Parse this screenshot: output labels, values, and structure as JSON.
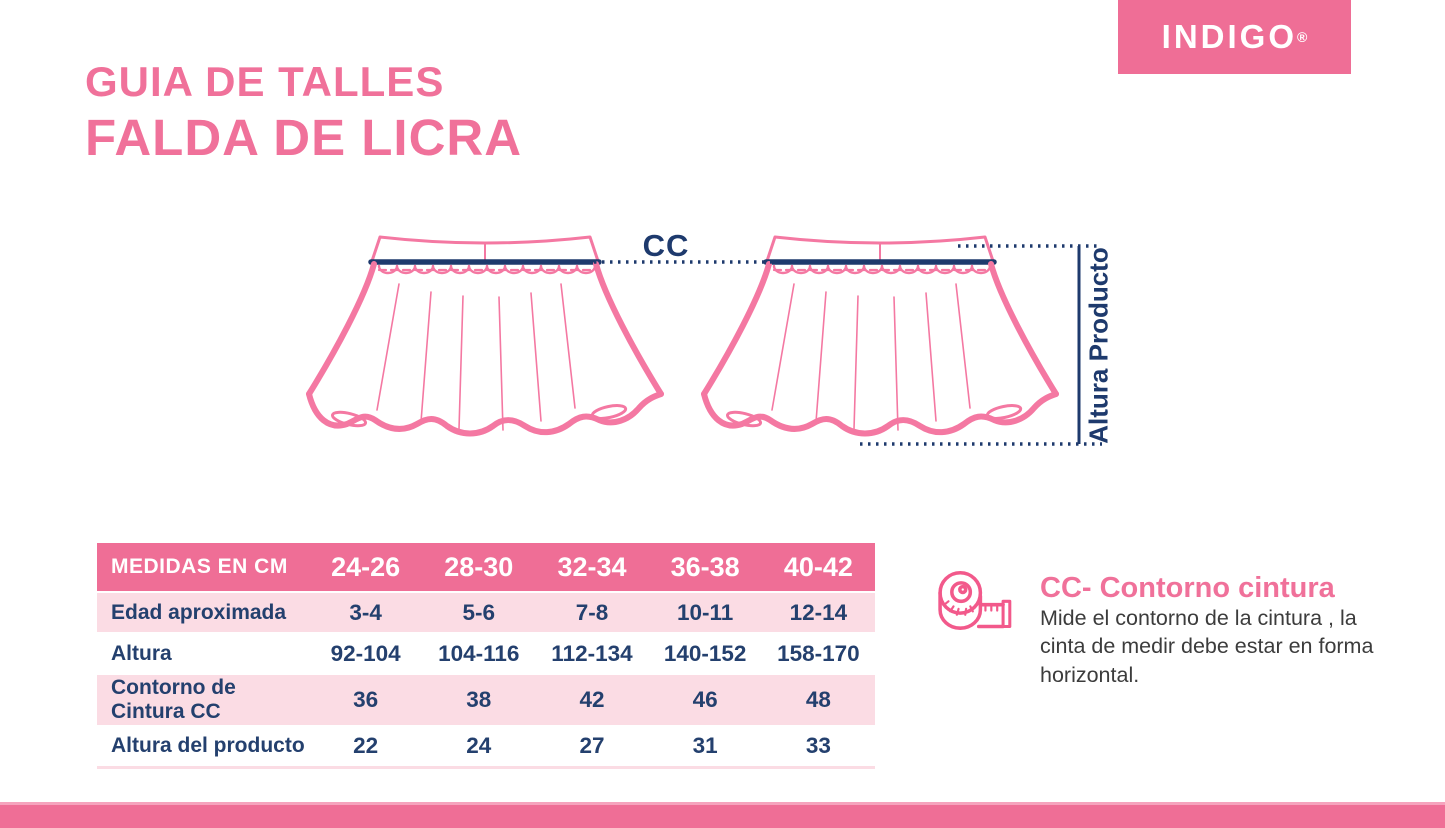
{
  "brand": {
    "logo_text": "INDIGO",
    "registered_mark": "®",
    "bg_color": "#ef6e96",
    "text_color": "#ffffff"
  },
  "header": {
    "subtitle": "GUIA DE TALLES",
    "title": "FALDA DE LICRA",
    "color": "#f0719a"
  },
  "diagram": {
    "cc_label": "CC",
    "altura_label": "Altura Producto",
    "skirt_outline_color": "#f478a2",
    "waistband_line_color": "#1e3a6d",
    "measure_line_color": "#1e3a6d"
  },
  "table": {
    "header": {
      "label": "MEDIDAS EN CM",
      "sizes": [
        "24-26",
        "28-30",
        "32-34",
        "36-38",
        "40-42"
      ]
    },
    "rows": [
      {
        "label": "Edad aproximada",
        "values": [
          "3-4",
          "5-6",
          "7-8",
          "10-11",
          "12-14"
        ]
      },
      {
        "label": "Altura",
        "values": [
          "92-104",
          "104-116",
          "112-134",
          "140-152",
          "158-170"
        ]
      },
      {
        "label": "Contorno de Cintura CC",
        "values": [
          "36",
          "38",
          "42",
          "46",
          "48"
        ]
      },
      {
        "label": "Altura del producto",
        "values": [
          "22",
          "24",
          "27",
          "31",
          "33"
        ]
      }
    ],
    "header_bg": "#ef6e96",
    "row_alt_bg": "#fbdce4",
    "text_color": "#24406e"
  },
  "info": {
    "icon": "measuring-tape-icon",
    "icon_color": "#f2598b",
    "title": "CC- Contorno cintura",
    "title_color": "#f0719a",
    "description": "Mide el contorno de la cintura , la cinta de medir debe estar en forma horizontal."
  },
  "footer": {
    "bar_color": "#ef6e96"
  }
}
